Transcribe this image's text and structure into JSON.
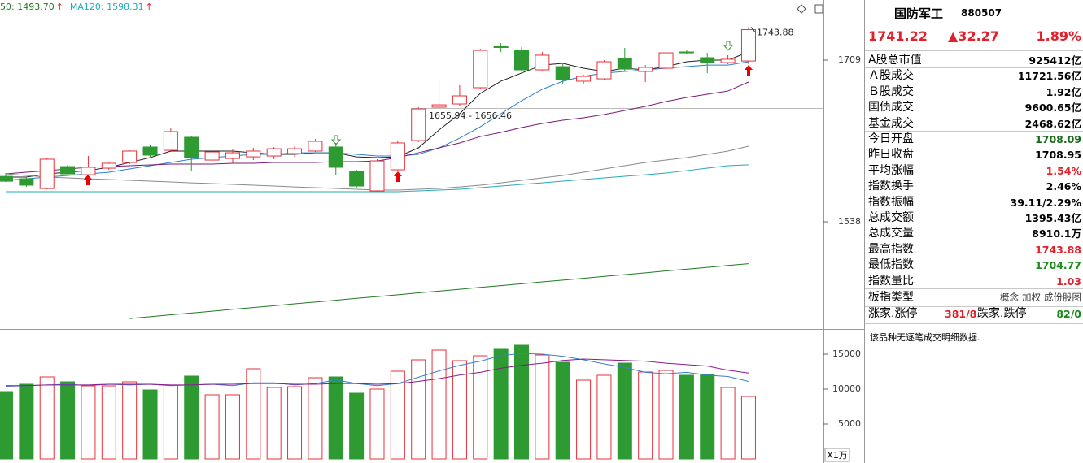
{
  "header": {
    "ma_labels": [
      {
        "text": "50: 1493.70",
        "color": "#1f7a1f"
      },
      {
        "text": "MA120: 1598.31",
        "color": "#22aabb"
      }
    ],
    "arrow": "↑",
    "arrow_color": "#e0202a"
  },
  "chart_data": [
    {
      "type": "candlestick",
      "up_color": "#e8303a",
      "down_color": "#2e9a32",
      "ylim": [
        1424.6,
        1772.6
      ],
      "yticks": [
        1538,
        1709
      ],
      "open": [
        1586.0,
        1583.5,
        1573.2,
        1596.4,
        1587.8,
        1594.7,
        1600.7,
        1617.1,
        1613.6,
        1627.4,
        1603.3,
        1605.0,
        1606.7,
        1607.6,
        1610.2,
        1612.8,
        1617.1,
        1591.3,
        1570.7,
        1593.0,
        1623.9,
        1659.2,
        1662.6,
        1679.8,
        1723.2,
        1719.3,
        1698.7,
        1702.1,
        1686.7,
        1689.2,
        1710.7,
        1697.0,
        1700.4,
        1717.6,
        1711.6,
        1706.4,
        1708.09
      ],
      "high": [
        1589.6,
        1585.3,
        1605.0,
        1598.2,
        1607.6,
        1601.6,
        1613.6,
        1619.6,
        1637.7,
        1629.1,
        1614.5,
        1614.5,
        1616.2,
        1617.1,
        1617.9,
        1625.6,
        1621.4,
        1593.0,
        1604.2,
        1623.9,
        1659.2,
        1686.7,
        1682.4,
        1721.0,
        1727.0,
        1722.7,
        1717.6,
        1704.7,
        1693.5,
        1709.0,
        1721.9,
        1703.8,
        1719.3,
        1719.3,
        1716.7,
        1714.2,
        1743.88
      ],
      "low": [
        1580.1,
        1574.9,
        1572.4,
        1587.0,
        1586.1,
        1593.0,
        1599.0,
        1606.7,
        1611.9,
        1592.1,
        1601.6,
        1599.9,
        1603.3,
        1604.2,
        1606.7,
        1611.9,
        1587.8,
        1574.1,
        1570.0,
        1591.3,
        1622.2,
        1656.6,
        1660.9,
        1678.1,
        1717.6,
        1697.0,
        1697.0,
        1684.1,
        1684.1,
        1688.4,
        1697.0,
        1685.8,
        1697.8,
        1715.0,
        1695.3,
        1704.7,
        1704.77
      ],
      "close": [
        1580.9,
        1576.7,
        1604.2,
        1588.7,
        1595.6,
        1599.9,
        1612.8,
        1608.5,
        1633.4,
        1605.9,
        1611.9,
        1611.0,
        1612.8,
        1615.3,
        1615.3,
        1623.1,
        1595.6,
        1575.8,
        1602.4,
        1621.4,
        1657.4,
        1661.7,
        1671.2,
        1719.3,
        1722.5,
        1698.7,
        1714.2,
        1688.4,
        1691.8,
        1707.3,
        1699.5,
        1701.3,
        1716.7,
        1716.7,
        1706.4,
        1709.9,
        1741.22
      ],
      "series": [
        {
          "color": "#222222",
          "values": [
            1585.3,
            1585.3,
            1588.7,
            1590.4,
            1592.1,
            1595.6,
            1600.7,
            1605.9,
            1612.8,
            1612.8,
            1612.8,
            1612.8,
            1611.0,
            1609.3,
            1609.3,
            1611.0,
            1611.0,
            1606.7,
            1605.9,
            1606.7,
            1616.2,
            1635.1,
            1652.3,
            1673.8,
            1686.7,
            1695.3,
            1703.8,
            1705.6,
            1700.4,
            1697.0,
            1700.4,
            1698.7,
            1702.1,
            1707.3,
            1709.0,
            1709.0,
            1717.6
          ]
        },
        {
          "color": "#2a7fd0",
          "values": [
            1581.8,
            1583.5,
            1585.3,
            1587.0,
            1588.7,
            1590.4,
            1593.9,
            1597.3,
            1600.7,
            1604.2,
            1605.9,
            1607.6,
            1609.3,
            1609.3,
            1611.0,
            1611.0,
            1611.0,
            1609.3,
            1607.6,
            1607.6,
            1609.3,
            1616.2,
            1626.5,
            1638.5,
            1652.3,
            1666.0,
            1678.1,
            1686.7,
            1691.8,
            1695.3,
            1697.0,
            1698.7,
            1700.4,
            1702.1,
            1703.8,
            1703.8,
            1707.3
          ]
        },
        {
          "color": "#7a1a7a",
          "values": [
            1588.7,
            1590.4,
            1592.1,
            1593.9,
            1595.6,
            1596.4,
            1597.3,
            1598.2,
            1599.0,
            1599.0,
            1599.0,
            1599.9,
            1599.9,
            1600.7,
            1600.7,
            1600.7,
            1601.6,
            1601.6,
            1602.4,
            1605.9,
            1611.0,
            1616.2,
            1621.4,
            1628.2,
            1632.5,
            1637.7,
            1642.0,
            1645.4,
            1648.0,
            1651.4,
            1655.7,
            1660.0,
            1665.2,
            1669.5,
            1672.9,
            1676.3,
            1685.8
          ]
        },
        {
          "color": "#8a8a8a",
          "values": [
            1588.7,
            1587.0,
            1585.3,
            1584.4,
            1583.5,
            1582.7,
            1581.8,
            1581.0,
            1580.1,
            1579.2,
            1578.4,
            1577.5,
            1576.7,
            1575.8,
            1574.9,
            1574.1,
            1573.2,
            1572.4,
            1571.5,
            1571.5,
            1572.4,
            1573.2,
            1574.9,
            1576.7,
            1579.2,
            1581.8,
            1584.4,
            1587.0,
            1590.4,
            1593.9,
            1597.3,
            1600.7,
            1603.3,
            1605.9,
            1609.3,
            1612.8,
            1617.9
          ]
        },
        {
          "color": "#22aabb",
          "values": [
            1569.8,
            1569.8,
            1569.8,
            1569.8,
            1569.8,
            1569.8,
            1569.8,
            1569.8,
            1569.8,
            1569.8,
            1569.8,
            1569.8,
            1569.8,
            1569.8,
            1569.8,
            1569.8,
            1569.8,
            1569.8,
            1569.8,
            1569.8,
            1570.7,
            1571.5,
            1572.4,
            1574.1,
            1575.8,
            1577.5,
            1579.2,
            1581.0,
            1582.7,
            1584.4,
            1586.1,
            1587.8,
            1589.6,
            1592.1,
            1594.7,
            1597.3,
            1598.31
          ]
        },
        {
          "color": "#1f7a1f",
          "values": [
            null,
            null,
            null,
            null,
            null,
            null,
            1435.7,
            1437.6,
            1439.6,
            1441.5,
            1443.4,
            1445.4,
            1447.3,
            1449.2,
            1451.2,
            1453.1,
            1455.0,
            1457.0,
            1458.9,
            1460.8,
            1462.8,
            1464.7,
            1466.6,
            1468.6,
            1470.5,
            1472.4,
            1474.4,
            1476.3,
            1478.2,
            1480.2,
            1482.1,
            1484.0,
            1486.0,
            1487.9,
            1489.8,
            1491.8,
            1493.7
          ]
        }
      ],
      "annotations": [
        {
          "text": "1743.88"
        },
        {
          "text": "1655.94 - 1656.46"
        }
      ]
    },
    {
      "type": "bar",
      "ylim": [
        0,
        18023
      ],
      "yticks": [
        5000,
        10000,
        15000
      ],
      "unit_label": "X1万",
      "values": [
        9651,
        10698,
        11744,
        11047,
        10465,
        10465,
        11047,
        9884,
        10581,
        11860,
        9186,
        9186,
        12907,
        10233,
        10349,
        11628,
        11744,
        9419,
        10000,
        12558,
        14186,
        15581,
        14070,
        14767,
        15698,
        16279,
        14884,
        13837,
        11279,
        11977,
        13721,
        12442,
        12674,
        11977,
        12093,
        10233,
        8953
      ],
      "series": [
        {
          "color": "#3a7fd0",
          "values": [
            10400,
            10500,
            10600,
            10700,
            10500,
            10700,
            10600,
            10700,
            10500,
            10600,
            10700,
            10500,
            10900,
            10900,
            10600,
            10800,
            11300,
            10800,
            10500,
            10800,
            11700,
            12600,
            13400,
            14000,
            14800,
            15100,
            15000,
            14700,
            14200,
            13600,
            13100,
            12400,
            12200,
            12400,
            12000,
            11800,
            11100
          ]
        },
        {
          "color": "#8b1a8b",
          "values": [
            10500,
            10500,
            10600,
            10600,
            10600,
            10700,
            10700,
            10700,
            10600,
            10600,
            10700,
            10700,
            10800,
            10800,
            10700,
            10700,
            10800,
            10800,
            10700,
            10800,
            11100,
            11500,
            12000,
            12400,
            13000,
            13400,
            13700,
            14100,
            14300,
            14200,
            14100,
            14000,
            13700,
            13500,
            13300,
            12700,
            12300
          ]
        }
      ]
    }
  ],
  "panel": {
    "name": "国防军工",
    "code": "880507",
    "price": "1741.22",
    "change": "▲32.27",
    "pct": "1.89%",
    "price_color": "#e0202a",
    "stats": [
      {
        "label": "A股总市值",
        "value": "925412亿",
        "color": "#000000"
      },
      {
        "label": "Ａ股成交",
        "value": "11721.56亿",
        "color": "#000000"
      },
      {
        "label": "Ｂ股成交",
        "value": "1.92亿",
        "color": "#000000"
      },
      {
        "label": "国债成交",
        "value": "9600.65亿",
        "color": "#000000"
      },
      {
        "label": "基金成交",
        "value": "2468.62亿",
        "color": "#000000"
      },
      {
        "label": "今日开盘",
        "value": "1708.09",
        "color": "#1a6a1a"
      },
      {
        "label": "昨日收盘",
        "value": "1708.95",
        "color": "#000000"
      },
      {
        "label": "平均涨幅",
        "value": "1.54%",
        "color": "#e0202a"
      },
      {
        "label": "指数换手",
        "value": "2.46%",
        "color": "#000000"
      },
      {
        "label": "指数振幅",
        "value": "39.11/2.29%",
        "color": "#000000"
      },
      {
        "label": "总成交额",
        "value": "1395.43亿",
        "color": "#000000"
      },
      {
        "label": "总成交量",
        "value": "8910.1万",
        "color": "#000000"
      },
      {
        "label": "最高指数",
        "value": "1743.88",
        "color": "#e0202a"
      },
      {
        "label": "最低指数",
        "value": "1704.77",
        "color": "#1a8a1a"
      },
      {
        "label": "指数量比",
        "value": "1.03",
        "color": "#e0202a"
      }
    ],
    "type_label": "板指类型",
    "type_links": [
      "概念",
      "加权",
      "成份股图"
    ],
    "rise_label": "涨家.涨停",
    "rise_value": "381/8",
    "fall_label": "跌家.跌停",
    "fall_value": "82/0",
    "note": "该品种无逐笔成交明细数据."
  }
}
